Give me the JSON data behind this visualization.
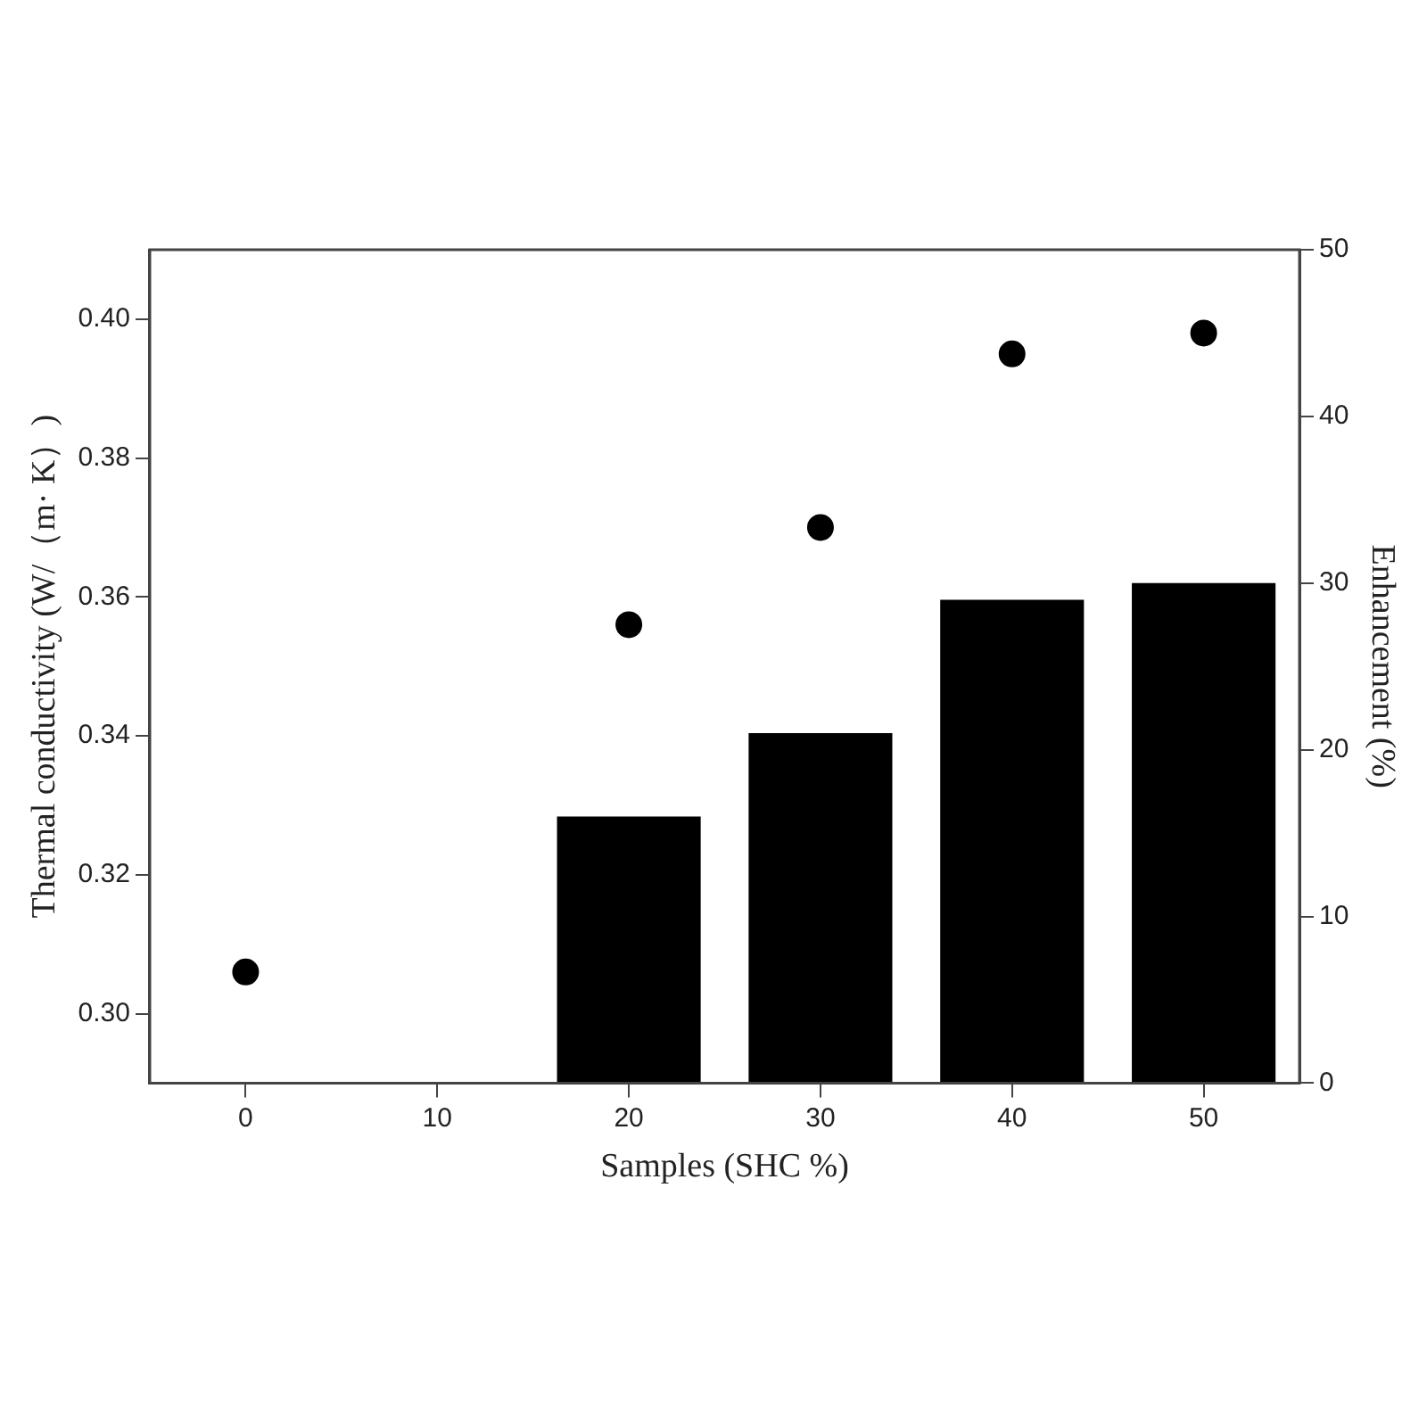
{
  "chart_data": {
    "type": "bar",
    "xlabel": "Samples (SHC %)",
    "ylabel": "Thermal conductivity (W/（m· K）)",
    "y2label": "Enhancement (%)",
    "categories": [
      "0",
      "10",
      "20",
      "30",
      "40",
      "50"
    ],
    "series": [
      {
        "axis": "y2",
        "color": "#000000",
        "values": [
          null,
          null,
          16,
          21,
          29,
          30
        ]
      },
      {
        "type": "scatter",
        "axis": "y",
        "color": "#000000",
        "values": [
          0.306,
          null,
          0.356,
          0.37,
          0.395,
          0.398
        ]
      }
    ],
    "ylim": [
      0.29,
      0.41
    ],
    "yticks": [
      {
        "value": 0.3,
        "label": "0.30"
      },
      0.32,
      0.34,
      0.36,
      0.38,
      {
        "value": 0.4,
        "label": "0.40"
      }
    ],
    "y2lim": [
      0,
      50
    ],
    "y2ticks": [
      0,
      10,
      20,
      30,
      40,
      50
    ],
    "marker": "circle",
    "grid": false,
    "legend": false
  }
}
